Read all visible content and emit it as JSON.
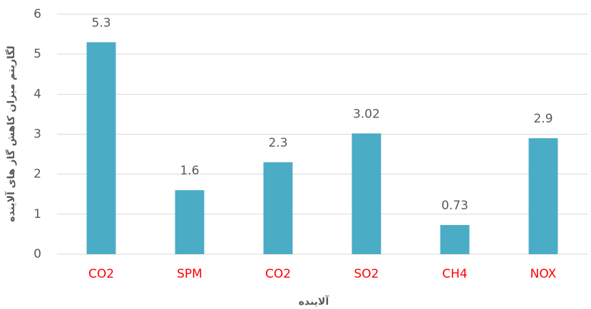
{
  "chart_data": {
    "type": "bar",
    "x_label": "آلاینده",
    "y_label": "لگاریتم میزان کاهش گاز های آلاینده",
    "categories": [
      "CO2",
      "SPM",
      "CO2",
      "SO2",
      "CH4",
      "NOX"
    ],
    "values": [
      5.3,
      1.6,
      2.3,
      3.02,
      0.73,
      2.9
    ],
    "color": "#4bacc6",
    "category_label_color": "#ff0000",
    "ylim": [
      0,
      6
    ],
    "yticks": [
      0,
      1,
      2,
      3,
      4,
      5,
      6
    ],
    "grid": true
  }
}
